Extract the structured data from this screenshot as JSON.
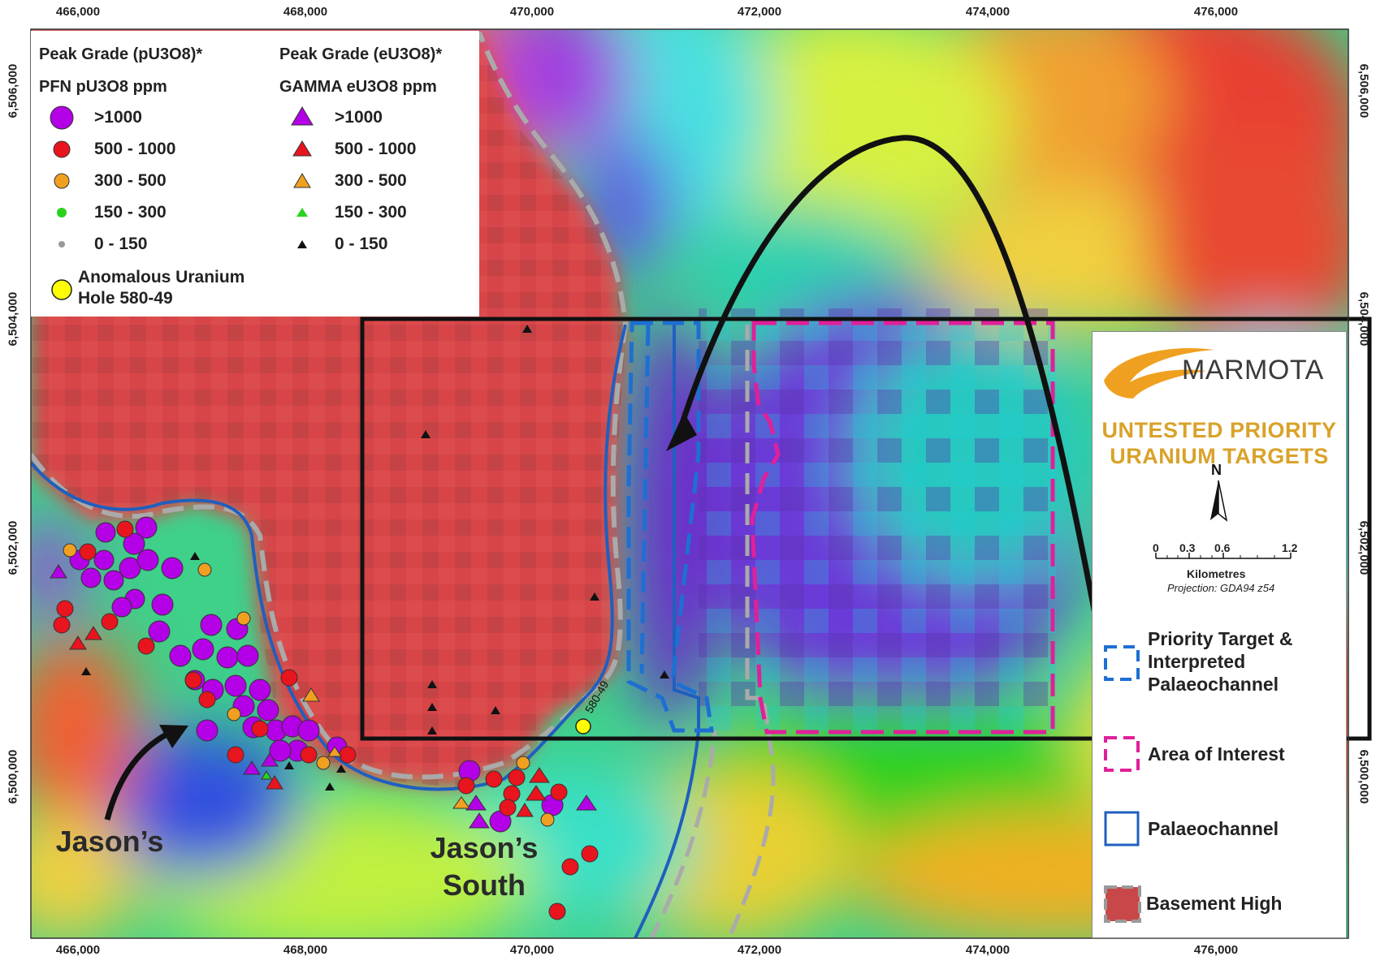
{
  "axes": {
    "x_ticks": [
      "466,000",
      "468,000",
      "470,000",
      "472,000",
      "474,000",
      "476,000"
    ],
    "y_ticks": [
      "6,506,000",
      "6,504,000",
      "6,502,000",
      "6,500,000"
    ]
  },
  "legend": {
    "pfn_heading": "Peak Grade (pU3O8)*",
    "pfn_subheading": "PFN pU3O8 ppm",
    "gamma_heading": "Peak Grade (eU3O8)*",
    "gamma_subheading": "GAMMA eU3O8 ppm",
    "pfn_classes": [
      {
        "label": ">1000",
        "color": "#b400e6"
      },
      {
        "label": "500 - 1000",
        "color": "#e8141e"
      },
      {
        "label": "300 - 500",
        "color": "#f0a020"
      },
      {
        "label": "150 - 300",
        "color": "#2ad21e"
      },
      {
        "label": "0 - 150",
        "color": "#999999"
      }
    ],
    "gamma_classes": [
      {
        "label": ">1000",
        "color": "#b400e6"
      },
      {
        "label": "500 - 1000",
        "color": "#e8141e"
      },
      {
        "label": "300 - 500",
        "color": "#f0a020"
      },
      {
        "label": "150 - 300",
        "color": "#2ad21e"
      },
      {
        "label": "0 - 150",
        "color": "#111111"
      }
    ],
    "anomalous_line1": "Anomalous Uranium",
    "anomalous_line2": "Hole 580-49",
    "anomalous_color": "#ffff00"
  },
  "key": {
    "company": "MARMOTA",
    "targets_line1": "UNTESTED PRIORITY",
    "targets_line2": "URANIUM TARGETS",
    "north": "N",
    "scale_ticks": [
      "0",
      "0.3",
      "0.6",
      "1.2"
    ],
    "scale_unit": "Kilometres",
    "projection": "Projection: GDA94 z54",
    "priority_line1": "Priority Target &",
    "priority_line2": "Interpreted",
    "priority_line3": "Palaeochannel",
    "area_of_interest": "Area of Interest",
    "palaeochannel": "Palaeochannel",
    "basement_high": "Basement High"
  },
  "labels": {
    "jasons": "Jason’s",
    "jasons_south_line1": "Jason’s",
    "jasons_south_line2": "South",
    "hole_id": "580-49"
  },
  "colors": {
    "priority_target": "#1e6fd2",
    "area_of_interest": "#e0209a",
    "palaeochannel": "#1f5fbf",
    "basement_high": "#d8444a",
    "logo_orange": "#f0a020"
  }
}
